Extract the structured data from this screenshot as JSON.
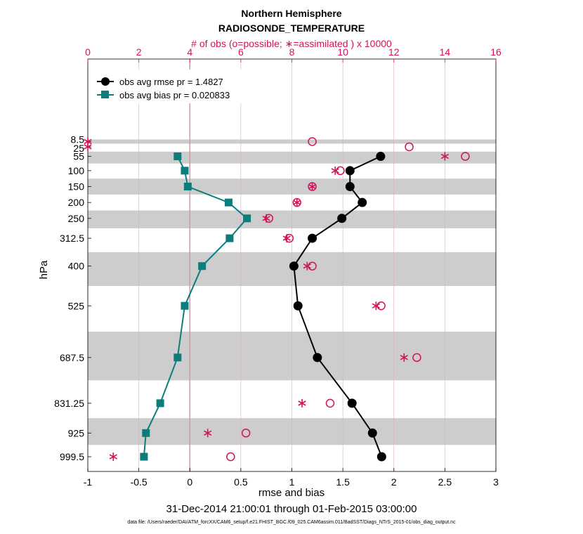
{
  "chart_data": {
    "type": "line",
    "title": "Northern Hemisphere",
    "subtitle": "RADIOSONDE_TEMPERATURE",
    "top_axis_label": "# of obs (o=possible; ∗=assimilated ) x 10000",
    "xlabel": "rmse and bias",
    "ylabel": "hPa",
    "date_range": "31-Dec-2014 21:00:01 through 01-Feb-2015 03:00:00",
    "footnote": "data file: /Users/raeder/DAI/ATM_forcXX/CAM6_setup/f.e21.FHIST_BGC.f09_025.CAM6assim.011/BadSST/Diags_NTrS_2015-01/obs_diag_output.nc",
    "xlim": [
      -1,
      3
    ],
    "xticks": [
      "-1",
      "-0.5",
      "0",
      "0.5",
      "1",
      "1.5",
      "2",
      "2.5",
      "3"
    ],
    "top_xlim": [
      0,
      16
    ],
    "top_xticks": [
      "0",
      "2",
      "4",
      "6",
      "8",
      "10",
      "12",
      "14",
      "16"
    ],
    "levels": [
      "8.5",
      "25",
      "55",
      "100",
      "150",
      "200",
      "250",
      "312.5",
      "400",
      "525",
      "687.5",
      "831.25",
      "925",
      "999.5"
    ],
    "level_values": [
      8.5,
      25,
      55,
      100,
      150,
      200,
      250,
      312.5,
      400,
      525,
      687.5,
      831.25,
      925,
      999.5
    ],
    "series": [
      {
        "name": "obs avg rmse pr = 1.4827",
        "color": "#000000",
        "marker": "circle",
        "values": [
          null,
          null,
          1.87,
          1.57,
          1.57,
          1.69,
          1.49,
          1.2,
          1.02,
          1.06,
          1.25,
          1.59,
          1.79,
          1.88
        ]
      },
      {
        "name": "obs avg bias pr = 0.020833",
        "color": "#0b7d7b",
        "marker": "square",
        "values": [
          null,
          null,
          -0.12,
          -0.05,
          -0.02,
          0.38,
          0.56,
          0.39,
          0.12,
          -0.05,
          -0.12,
          -0.29,
          -0.43,
          -0.45
        ]
      }
    ],
    "obs_possible": [
      8.8,
      12.6,
      14.8,
      9.9,
      8.8,
      8.2,
      7.1,
      7.9,
      8.8,
      11.5,
      12.9,
      9.5,
      6.2,
      5.6
    ],
    "obs_assimilated": [
      0,
      0,
      14.0,
      9.7,
      8.8,
      8.2,
      7.0,
      7.8,
      8.6,
      11.3,
      12.4,
      8.4,
      4.7,
      1.0
    ]
  }
}
